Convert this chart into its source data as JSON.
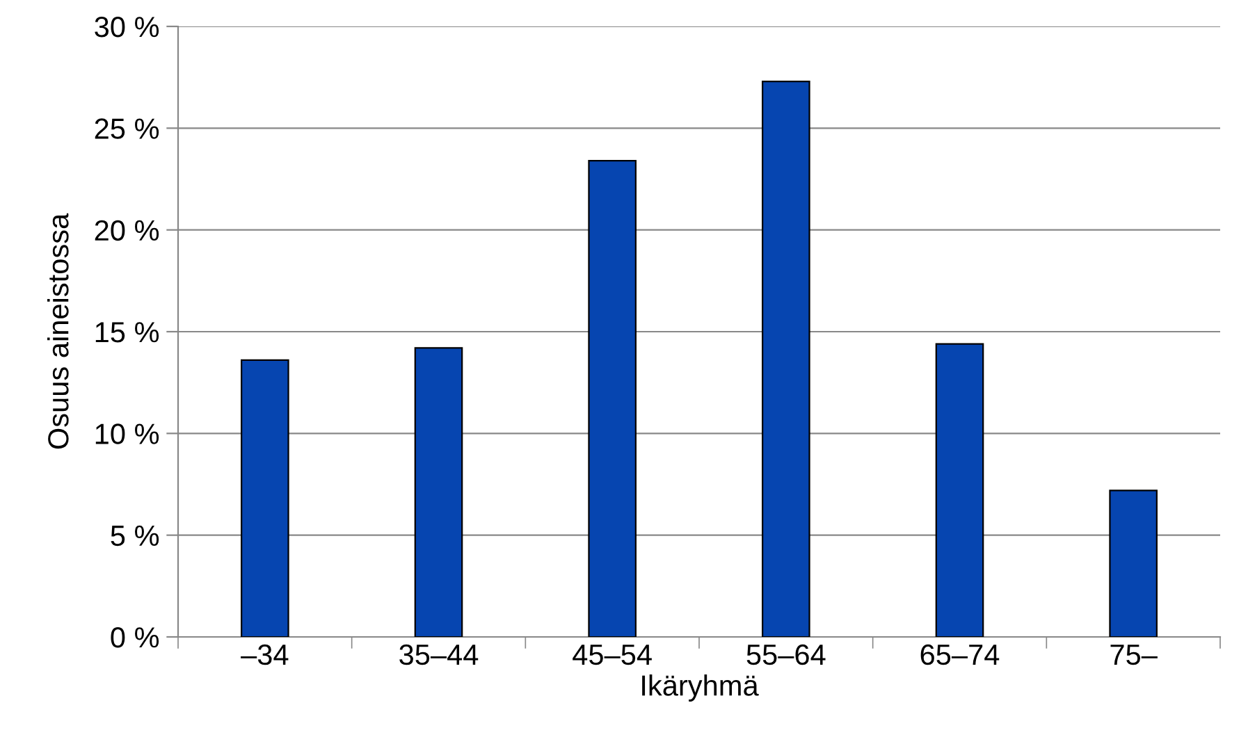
{
  "chart_data": {
    "type": "bar",
    "xlabel": "Ikäryhmä",
    "ylabel": "Osuus aineistossa",
    "categories": [
      "–34",
      "35–44",
      "45–54",
      "55–64",
      "65–74",
      "75–"
    ],
    "values": [
      13.6,
      14.2,
      23.4,
      27.3,
      14.4,
      7.2
    ],
    "color": "#0645b0",
    "ylim": [
      0,
      30
    ],
    "yticks": [
      {
        "value": 0,
        "label": "0 %"
      },
      {
        "value": 5,
        "label": "5 %"
      },
      {
        "value": 10,
        "label": "10 %"
      },
      {
        "value": 15,
        "label": "15 %"
      },
      {
        "value": 20,
        "label": "20 %"
      },
      {
        "value": 25,
        "label": "25 %"
      },
      {
        "value": 30,
        "label": "30 %"
      }
    ],
    "grid": "y"
  }
}
